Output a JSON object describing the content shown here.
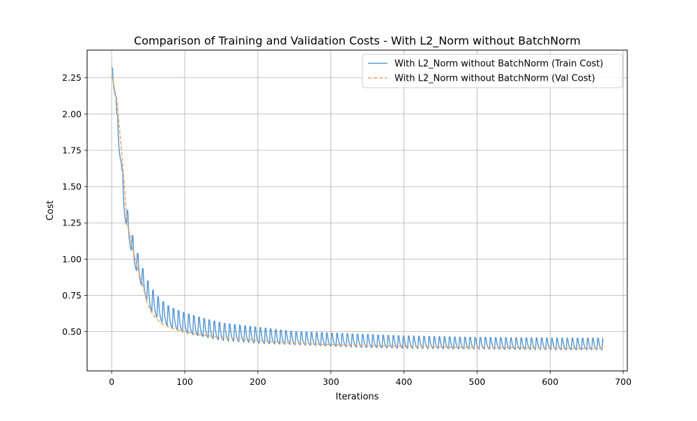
{
  "chart_data": {
    "type": "line",
    "title": "Comparison of Training and Validation Costs - With L2_Norm without BatchNorm",
    "xlabel": "Iterations",
    "ylabel": "Cost",
    "xlim": [
      -33.6,
      705.6
    ],
    "ylim": [
      0.2295,
      2.4405
    ],
    "x_ticks": [
      0,
      100,
      200,
      300,
      400,
      500,
      600,
      700
    ],
    "y_ticks": [
      0.5,
      0.75,
      1.0,
      1.25,
      1.5,
      1.75,
      2.0,
      2.25
    ],
    "grid": true,
    "legend_position": "top-right",
    "x_max": 672,
    "series": [
      {
        "name": "With L2_Norm without BatchNorm (Train Cost)",
        "color": "#5b9bd5",
        "style": "solid",
        "period": 7,
        "envelope": [
          [
            0,
            2.35
          ],
          [
            5,
            2.19
          ],
          [
            12,
            1.75
          ],
          [
            20,
            1.39
          ],
          [
            27,
            1.2
          ],
          [
            34,
            1.07
          ],
          [
            41,
            0.96
          ],
          [
            48,
            0.87
          ],
          [
            55,
            0.8
          ],
          [
            62,
            0.75
          ],
          [
            70,
            0.71
          ],
          [
            80,
            0.67
          ],
          [
            90,
            0.65
          ],
          [
            100,
            0.63
          ],
          [
            120,
            0.6
          ],
          [
            150,
            0.56
          ],
          [
            200,
            0.53
          ],
          [
            250,
            0.5
          ],
          [
            300,
            0.49
          ],
          [
            350,
            0.48
          ],
          [
            400,
            0.47
          ],
          [
            500,
            0.46
          ],
          [
            600,
            0.455
          ],
          [
            672,
            0.455
          ]
        ],
        "troughs": [
          [
            0,
            2.3
          ],
          [
            6,
            2.12
          ],
          [
            13,
            1.67
          ],
          [
            20,
            1.24
          ],
          [
            27,
            1.06
          ],
          [
            34,
            0.92
          ],
          [
            41,
            0.82
          ],
          [
            48,
            0.72
          ],
          [
            55,
            0.64
          ],
          [
            62,
            0.6
          ],
          [
            70,
            0.56
          ],
          [
            80,
            0.53
          ],
          [
            90,
            0.51
          ],
          [
            100,
            0.49
          ],
          [
            120,
            0.47
          ],
          [
            150,
            0.44
          ],
          [
            200,
            0.42
          ],
          [
            250,
            0.41
          ],
          [
            300,
            0.4
          ],
          [
            350,
            0.39
          ],
          [
            400,
            0.385
          ],
          [
            500,
            0.38
          ],
          [
            600,
            0.375
          ],
          [
            672,
            0.375
          ]
        ],
        "end_value": 0.42
      },
      {
        "name": "With L2_Norm without BatchNorm (Val Cost)",
        "color": "#f4a460",
        "style": "dashed",
        "points": [
          [
            0,
            2.27
          ],
          [
            7,
            2.1
          ],
          [
            14,
            1.72
          ],
          [
            21,
            1.26
          ],
          [
            28,
            1.08
          ],
          [
            35,
            0.95
          ],
          [
            42,
            0.83
          ],
          [
            49,
            0.69
          ],
          [
            56,
            0.62
          ],
          [
            63,
            0.58
          ],
          [
            70,
            0.55
          ],
          [
            84,
            0.52
          ],
          [
            100,
            0.5
          ],
          [
            120,
            0.48
          ],
          [
            150,
            0.46
          ],
          [
            200,
            0.44
          ],
          [
            250,
            0.42
          ],
          [
            300,
            0.41
          ],
          [
            350,
            0.405
          ],
          [
            400,
            0.4
          ],
          [
            450,
            0.395
          ],
          [
            500,
            0.39
          ],
          [
            550,
            0.39
          ],
          [
            600,
            0.385
          ],
          [
            650,
            0.385
          ],
          [
            672,
            0.385
          ]
        ]
      }
    ]
  }
}
